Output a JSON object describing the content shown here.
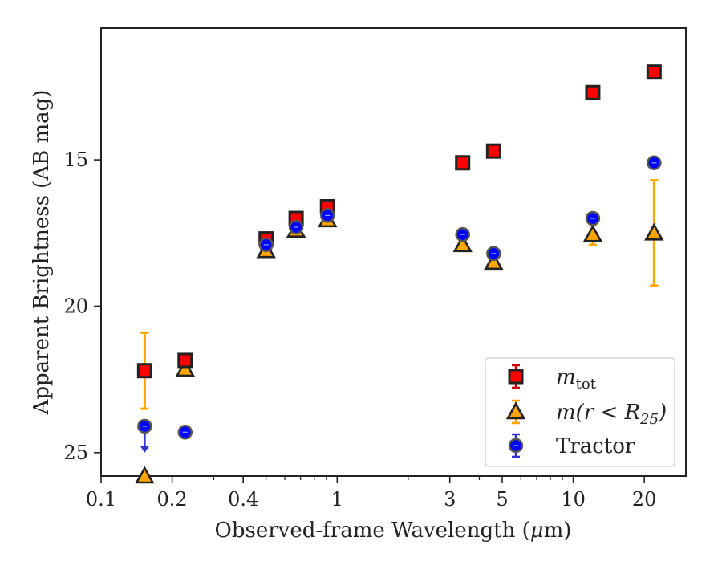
{
  "chart_data": {
    "type": "scatter",
    "xlabel_text": "Observed-frame Wavelength (",
    "xlabel_unit": "μ",
    "xlabel_tail": "m)",
    "ylabel": "Apparent Brightness (AB mag)",
    "x_scale": "log",
    "y_inverted": true,
    "xlim": [
      0.1,
      30
    ],
    "ylim": [
      25.8,
      10.5
    ],
    "x_ticks": [
      0.1,
      0.2,
      0.4,
      1,
      3,
      5,
      10,
      20
    ],
    "x_tick_labels": [
      "0.1",
      "0.2",
      "0.4",
      "1",
      "3",
      "5",
      "10",
      "20"
    ],
    "y_ticks": [
      15,
      20,
      25
    ],
    "y_tick_labels": [
      "15",
      "20",
      "25"
    ],
    "legend_position": "lower-right",
    "series": [
      {
        "name_main": "m",
        "name_sub": "tot",
        "name_sub_style": "normal",
        "marker": "square",
        "color": "#ff0000",
        "errcolor": "#cc0000",
        "points": [
          {
            "x": 0.153,
            "y": 22.2
          },
          {
            "x": 0.227,
            "y": 21.85
          },
          {
            "x": 0.5,
            "y": 17.7
          },
          {
            "x": 0.67,
            "y": 17.0
          },
          {
            "x": 0.91,
            "y": 16.6
          },
          {
            "x": 3.4,
            "y": 15.1
          },
          {
            "x": 4.6,
            "y": 14.7
          },
          {
            "x": 12.1,
            "y": 12.7
          },
          {
            "x": 22.0,
            "y": 12.0
          }
        ]
      },
      {
        "name_main": "m(r < R",
        "name_sub": "25",
        "name_tail": ")",
        "name_sub_style": "italic",
        "marker": "triangle",
        "color": "#ffa500",
        "errcolor": "#ffa500",
        "points": [
          {
            "x": 0.153,
            "y": 25.8,
            "yerr": 0
          },
          {
            "x": 0.227,
            "y": 22.15
          },
          {
            "x": 0.5,
            "y": 18.1
          },
          {
            "x": 0.67,
            "y": 17.4
          },
          {
            "x": 0.91,
            "y": 17.05
          },
          {
            "x": 3.4,
            "y": 17.9
          },
          {
            "x": 4.6,
            "y": 18.5
          },
          {
            "x": 12.1,
            "y": 17.55,
            "yerr": 0.35
          },
          {
            "x": 22.0,
            "y": 17.5,
            "yerr": 1.8
          }
        ],
        "extra_errorbars": [
          {
            "x": 0.153,
            "y": 22.2,
            "yerr": 1.3
          }
        ]
      },
      {
        "name_main": "Tractor",
        "marker": "circle",
        "color": "#0000ff",
        "errcolor": "#3333cc",
        "points": [
          {
            "x": 0.153,
            "y": 24.1,
            "upper_limit": true
          },
          {
            "x": 0.227,
            "y": 24.3
          },
          {
            "x": 0.5,
            "y": 17.9
          },
          {
            "x": 0.67,
            "y": 17.3
          },
          {
            "x": 0.91,
            "y": 16.9
          },
          {
            "x": 3.4,
            "y": 17.55
          },
          {
            "x": 4.6,
            "y": 18.2
          },
          {
            "x": 12.1,
            "y": 17.0
          },
          {
            "x": 22.0,
            "y": 15.1
          }
        ]
      }
    ]
  }
}
